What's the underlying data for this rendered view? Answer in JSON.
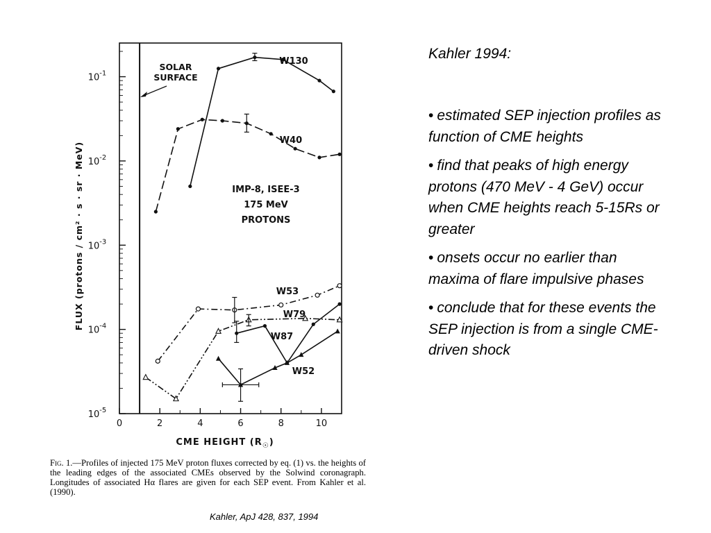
{
  "chart_data": {
    "type": "line",
    "xlabel": "CME HEIGHT (R",
    "xlabel_sub": "☉",
    "xlabel_end": ")",
    "ylabel": "FLUX (protons / cm² · s · sr · MeV)",
    "x_ticks": [
      "0",
      "2",
      "4",
      "6",
      "8",
      "10"
    ],
    "x_tick_values": [
      0,
      2,
      4,
      6,
      8,
      10
    ],
    "y_ticks": [
      {
        "base": "10",
        "exp": "-1",
        "value": -1
      },
      {
        "base": "10",
        "exp": "-2",
        "value": -2
      },
      {
        "base": "10",
        "exp": "-3",
        "value": -3
      },
      {
        "base": "10",
        "exp": "-4",
        "value": -4
      },
      {
        "base": "10",
        "exp": "-5",
        "value": -5
      }
    ],
    "xlim": [
      0,
      11
    ],
    "ylim_log10": [
      -5,
      -0.6
    ],
    "y_scale": "log",
    "annotations": {
      "solar_surface": [
        "SOLAR",
        "SURFACE"
      ],
      "instrument": [
        "IMP-8, ISEE-3",
        "175 MeV",
        "PROTONS"
      ]
    },
    "series": [
      {
        "name": "W130",
        "style": "solid",
        "marker": "dot",
        "x": [
          3.5,
          4.9,
          6.7,
          8.1,
          9.9,
          10.6
        ],
        "y": [
          0.005,
          0.125,
          0.17,
          0.16,
          0.09,
          0.067
        ]
      },
      {
        "name": "W40",
        "style": "dashed",
        "marker": "dot",
        "x": [
          1.8,
          2.9,
          4.1,
          5.1,
          6.3,
          7.5,
          8.7,
          9.9,
          10.9
        ],
        "y": [
          0.0025,
          0.024,
          0.031,
          0.03,
          0.028,
          0.021,
          0.014,
          0.011,
          0.012
        ]
      },
      {
        "name": "W53",
        "style": "dashdot",
        "marker": "circle",
        "x": [
          1.9,
          3.9,
          5.7,
          8.0,
          9.8,
          10.9
        ],
        "y": [
          4.2e-05,
          0.000175,
          0.00017,
          0.000195,
          0.000255,
          0.00033
        ]
      },
      {
        "name": "W79",
        "style": "dashdotdot",
        "marker": "triangle-open",
        "x": [
          1.3,
          2.8,
          4.9,
          6.4,
          9.2,
          10.9
        ],
        "y": [
          2.7e-05,
          1.5e-05,
          9.5e-05,
          0.00013,
          0.000135,
          0.00013
        ]
      },
      {
        "name": "W87",
        "style": "solid",
        "marker": "dot",
        "x": [
          5.8,
          7.2,
          8.3,
          9.6,
          10.9
        ],
        "y": [
          9e-05,
          0.00011,
          4e-05,
          0.000115,
          0.0002
        ]
      },
      {
        "name": "W52",
        "style": "solid",
        "marker": "triangle-filled",
        "x": [
          4.9,
          6.0,
          7.7,
          8.3,
          9.0,
          10.8
        ],
        "y": [
          4.5e-05,
          2.2e-05,
          3.5e-05,
          4e-05,
          5e-05,
          9.5e-05
        ]
      }
    ]
  },
  "caption": {
    "lead": "Fig.  1.",
    "text": "—Profiles of injected 175 MeV proton fluxes corrected by eq. (1) vs. the heights of the leading edges of the associated CMEs observed by the Solwind coronagraph. Longitudes of associated Hα flares are given for each SEP event. From Kahler et al. (1990)."
  },
  "citation": "Kahler, ApJ 428, 837, 1994",
  "notes": {
    "title": "Kahler 1994:",
    "bullet_char": "•",
    "items": [
      "estimated SEP injection profiles as function of CME heights",
      "find that peaks of high energy protons (470 MeV - 4 GeV) occur when CME heights reach 5-15Rs or greater",
      "onsets occur no earlier than maxima of flare impulsive phases",
      "conclude that for these events the SEP injection is from a single CME-driven shock"
    ]
  }
}
